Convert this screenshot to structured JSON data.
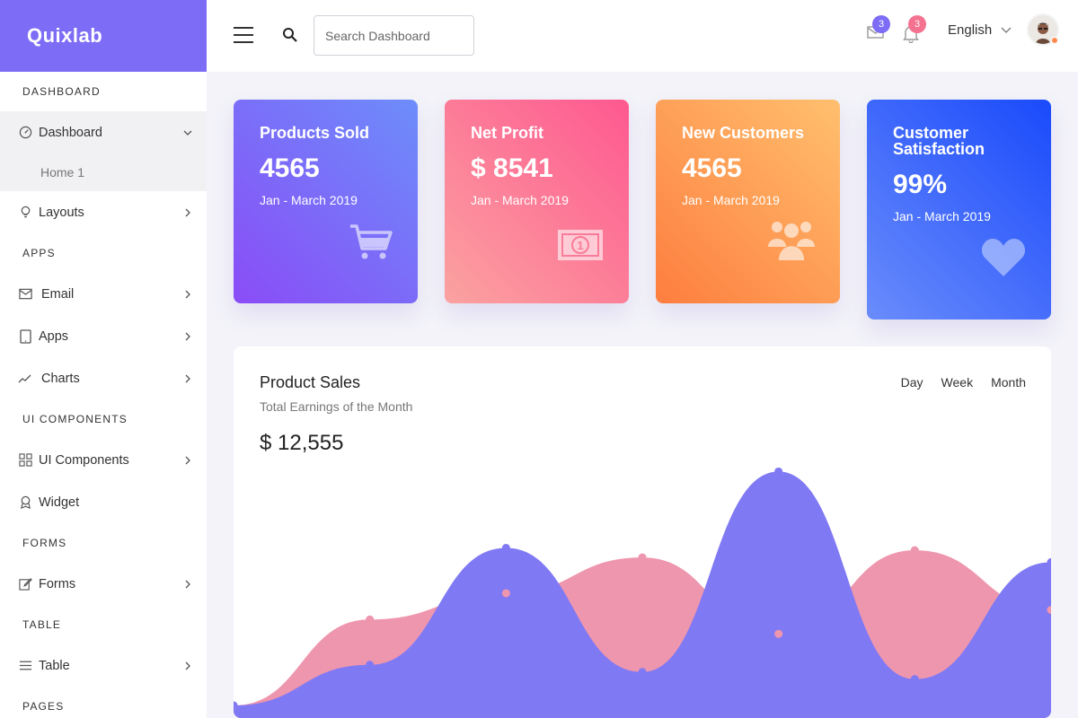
{
  "brand": {
    "name": "Quixlab",
    "color": "#7d6cf5"
  },
  "sidebar": {
    "sections": {
      "dashboard": "DASHBOARD",
      "apps": "APPS",
      "ui_components": "UI COMPONENTS",
      "forms": "FORMS",
      "table": "TABLE",
      "pages": "PAGES"
    },
    "items": {
      "dashboard": {
        "label": "Dashboard",
        "icon": "gauge-icon",
        "expanded": true
      },
      "home1": {
        "label": "Home 1"
      },
      "layouts": {
        "label": "Layouts",
        "icon": "lightbulb-icon"
      },
      "email": {
        "label": "Email",
        "icon": "envelope-icon"
      },
      "apps": {
        "label": "Apps",
        "icon": "tablet-icon"
      },
      "charts": {
        "label": "Charts",
        "icon": "trend-icon"
      },
      "ui_components": {
        "label": "UI Components",
        "icon": "grid-icon"
      },
      "widget": {
        "label": "Widget",
        "icon": "badge-icon"
      },
      "forms": {
        "label": "Forms",
        "icon": "edit-icon"
      },
      "table": {
        "label": "Table",
        "icon": "list-icon"
      }
    }
  },
  "topbar": {
    "search_placeholder": "Search Dashboard",
    "mail_count": "3",
    "notif_count": "3",
    "language": "English",
    "colors": {
      "mail_badge": "#7d6cf5",
      "notif_badge": "#f4718f"
    }
  },
  "cards": [
    {
      "title": "Products Sold",
      "value": "4565",
      "period": "Jan - March 2019",
      "icon": "cart-icon",
      "gradient": [
        "#8a4cf6",
        "#6d8dfb"
      ]
    },
    {
      "title": "Net Profit",
      "value": "$ 8541",
      "period": "Jan - March 2019",
      "icon": "money-icon",
      "gradient": [
        "#fba2a0",
        "#fe5890"
      ]
    },
    {
      "title": "New Customers",
      "value": "4565",
      "period": "Jan - March 2019",
      "icon": "users-icon",
      "gradient": [
        "#fe7e3f",
        "#ffbf6e"
      ]
    },
    {
      "title": "Customer Satisfaction",
      "value": "99%",
      "period": "Jan - March 2019",
      "icon": "heart-icon",
      "gradient": [
        "#6a8cfb",
        "#1a4afb"
      ]
    }
  ],
  "sales": {
    "title": "Product Sales",
    "subtitle": "Total Earnings of the Month",
    "value": "$ 12,555",
    "tabs": [
      "Day",
      "Week",
      "Month"
    ]
  },
  "chart_data": {
    "type": "area",
    "x": [
      0,
      1,
      2,
      3,
      4,
      5,
      6
    ],
    "series": [
      {
        "values": [
          0,
          36,
          47,
          62,
          30,
          65,
          40
        ],
        "color": "#ee96ad"
      },
      {
        "values": [
          0,
          17,
          66,
          14,
          98,
          11,
          60
        ],
        "color": "#8079f4"
      }
    ],
    "ylim": [
      0,
      100
    ]
  }
}
